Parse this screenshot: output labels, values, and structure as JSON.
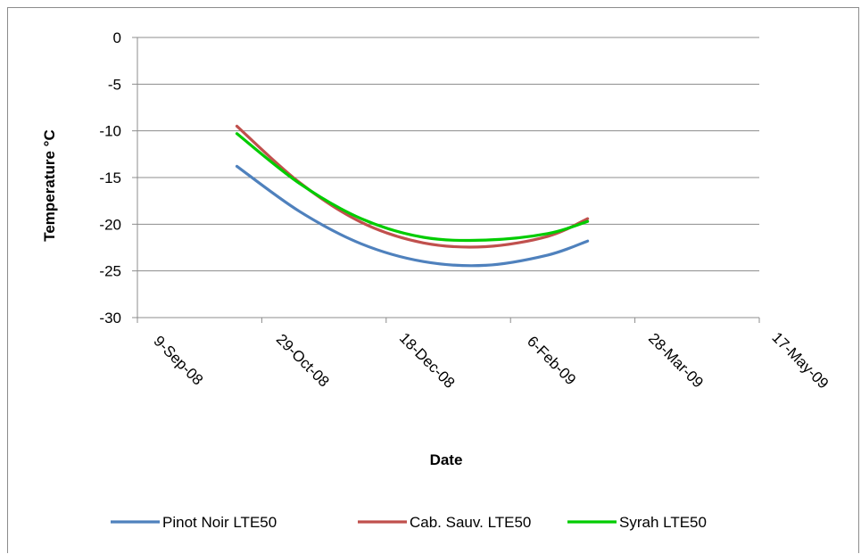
{
  "chart_data": {
    "type": "line",
    "title": "",
    "xlabel": "Date",
    "ylabel": "Temperature °C",
    "ylim": [
      -30,
      0
    ],
    "y_ticks": [
      0,
      -5,
      -10,
      -15,
      -20,
      -25,
      -30
    ],
    "xlim": [
      "2008-09-09",
      "2009-05-17"
    ],
    "x_ticks": [
      "2008-09-09",
      "2008-10-29",
      "2008-12-18",
      "2009-02-06",
      "2009-03-28",
      "2009-05-17"
    ],
    "x_tick_labels": [
      "9-Sep-08",
      "29-Oct-08",
      "18-Dec-08",
      "6-Feb-09",
      "28-Mar-09",
      "17-May-09"
    ],
    "grid": "horizontal",
    "legend_position": "bottom",
    "series": [
      {
        "name": "Pinot Noir LTE50",
        "color": "#4f81bd",
        "x": [
          "2008-10-19",
          "2008-11-13",
          "2008-12-08",
          "2009-01-02",
          "2009-01-27",
          "2009-02-21",
          "2009-03-09"
        ],
        "y": [
          -13.8,
          -18.6,
          -22.1,
          -24.0,
          -24.4,
          -23.3,
          -21.8
        ]
      },
      {
        "name": "Cab. Sauv. LTE50",
        "color": "#c0504d",
        "x": [
          "2008-10-19",
          "2008-11-13",
          "2008-12-08",
          "2009-01-02",
          "2009-01-27",
          "2009-02-21",
          "2009-03-09"
        ],
        "y": [
          -9.5,
          -15.5,
          -19.8,
          -22.0,
          -22.4,
          -21.3,
          -19.4
        ]
      },
      {
        "name": "Syrah LTE50",
        "color": "#00cc00",
        "x": [
          "2008-10-19",
          "2008-11-13",
          "2008-12-08",
          "2009-01-02",
          "2009-01-27",
          "2009-02-21",
          "2009-03-09"
        ],
        "y": [
          -10.3,
          -15.6,
          -19.4,
          -21.4,
          -21.7,
          -21.0,
          -19.7
        ]
      }
    ]
  }
}
